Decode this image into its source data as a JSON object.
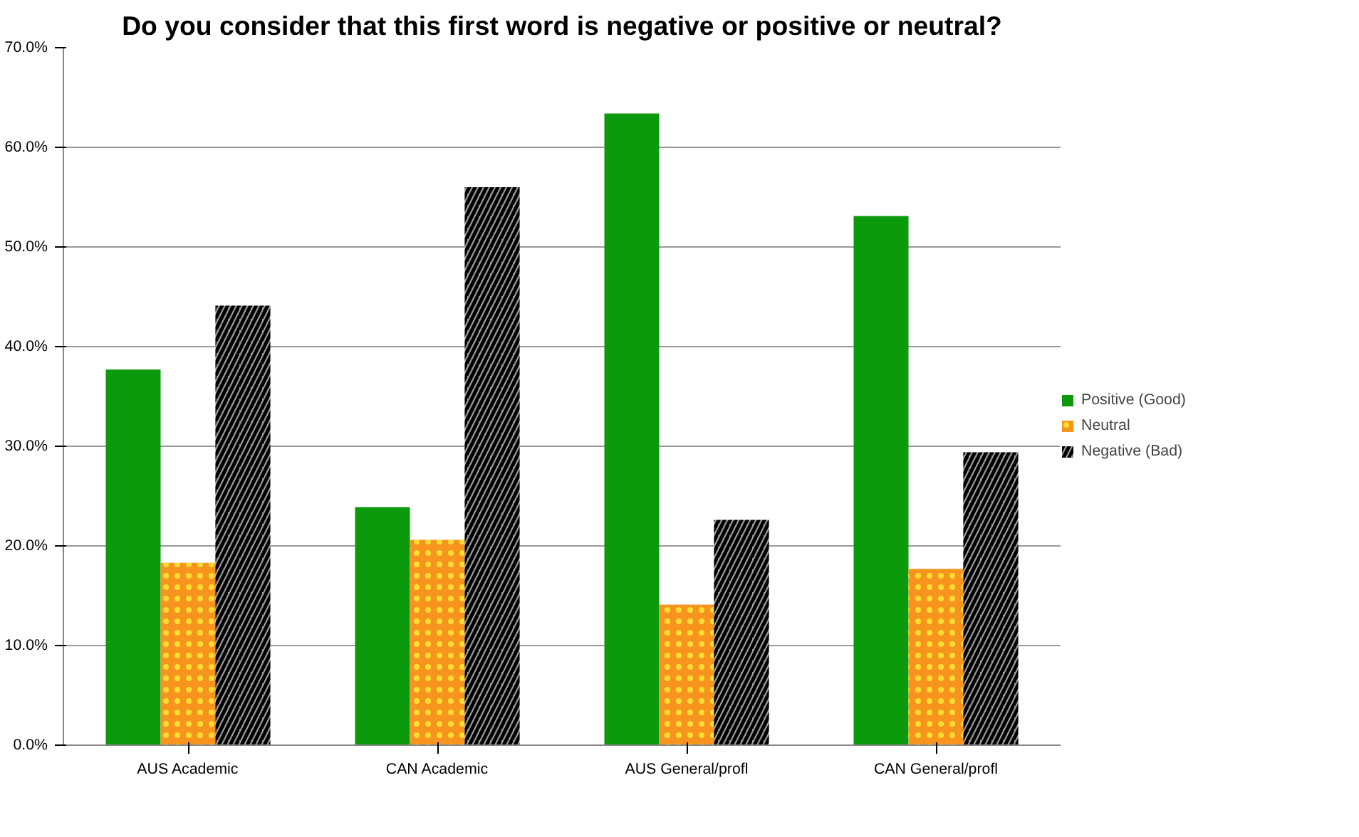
{
  "chart_data": {
    "type": "bar",
    "title": "Do you consider that this first word is negative or positive or neutral?",
    "categories": [
      "AUS Academic",
      "CAN Academic",
      "AUS General/profl",
      "CAN General/profl"
    ],
    "series": [
      {
        "name": "Positive (Good)",
        "color": "#0b9a0b",
        "values": [
          37.7,
          23.9,
          63.4,
          53.1
        ]
      },
      {
        "name": "Neutral",
        "color": "#f7941d",
        "values": [
          18.3,
          20.6,
          14.1,
          17.7
        ]
      },
      {
        "name": "Negative (Bad)",
        "color": "#9a9a9a",
        "values": [
          44.1,
          56.0,
          22.6,
          29.4
        ]
      }
    ],
    "ylim": [
      0,
      70
    ],
    "yticks": [
      {
        "value": 0,
        "label": "0.0%"
      },
      {
        "value": 10,
        "label": "10.0%"
      },
      {
        "value": 20,
        "label": "20.0%"
      },
      {
        "value": 30,
        "label": "30.0%"
      },
      {
        "value": 40,
        "label": "40.0%"
      },
      {
        "value": 50,
        "label": "50.0%"
      },
      {
        "value": 60,
        "label": "60.0%"
      },
      {
        "value": 70,
        "label": "70.0%"
      }
    ],
    "grid": "y",
    "legend": "right"
  }
}
